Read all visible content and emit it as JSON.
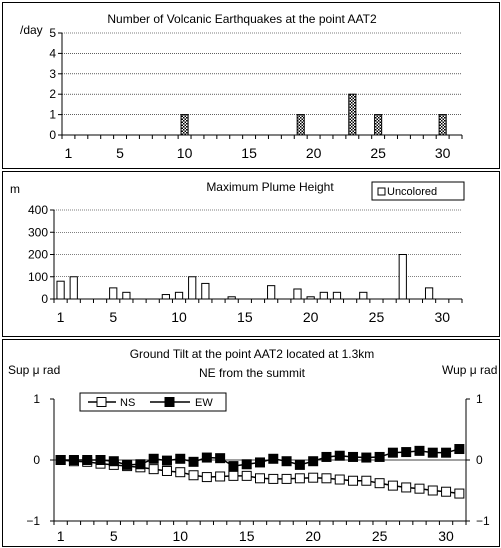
{
  "chart_data": [
    {
      "type": "bar",
      "title": "Number of Volcanic Earthquakes at the point AAT2",
      "ylabel": "/day",
      "xlabel": "",
      "x": [
        1,
        2,
        3,
        4,
        5,
        6,
        7,
        8,
        9,
        10,
        11,
        12,
        13,
        14,
        15,
        16,
        17,
        18,
        19,
        20,
        21,
        22,
        23,
        24,
        25,
        26,
        27,
        28,
        29,
        30,
        31
      ],
      "values": [
        0,
        0,
        0,
        0,
        0,
        0,
        0,
        0,
        0,
        1,
        0,
        0,
        0,
        0,
        0,
        0,
        0,
        0,
        1,
        0,
        0,
        0,
        2,
        0,
        1,
        0,
        0,
        0,
        0,
        1,
        0
      ],
      "xlim": [
        1,
        31
      ],
      "ylim": [
        0,
        5
      ],
      "yticks": [
        0,
        1,
        2,
        3,
        4,
        5
      ],
      "xticks": [
        1,
        5,
        10,
        15,
        20,
        25,
        30
      ],
      "grid": "horizontal",
      "bar_fill": "crosshatch"
    },
    {
      "type": "bar",
      "title": "Maximum Plume Height",
      "ylabel": "m",
      "xlabel": "",
      "x": [
        1,
        2,
        3,
        4,
        5,
        6,
        7,
        8,
        9,
        10,
        11,
        12,
        13,
        14,
        15,
        16,
        17,
        18,
        19,
        20,
        21,
        22,
        23,
        24,
        25,
        26,
        27,
        28,
        29,
        30,
        31
      ],
      "values": [
        80,
        100,
        0,
        0,
        50,
        30,
        0,
        0,
        20,
        30,
        100,
        70,
        0,
        10,
        0,
        0,
        60,
        0,
        45,
        10,
        30,
        30,
        0,
        30,
        0,
        0,
        200,
        0,
        50,
        0,
        0
      ],
      "xlim": [
        1,
        31
      ],
      "ylim": [
        0,
        400
      ],
      "yticks": [
        0,
        100,
        200,
        300,
        400
      ],
      "xticks": [
        1,
        5,
        10,
        15,
        20,
        25,
        30
      ],
      "grid": "horizontal",
      "legend": {
        "label": "Uncolored",
        "position": "top-right"
      }
    },
    {
      "type": "line",
      "title": "Ground Tilt at the point AAT2 located at 1.3km",
      "subtitle": "NE from the summit",
      "ylabel_left": "Sup μ rad",
      "ylabel_right": "Wup μ rad",
      "x": [
        1,
        2,
        3,
        4,
        5,
        6,
        7,
        8,
        9,
        10,
        11,
        12,
        13,
        14,
        15,
        16,
        17,
        18,
        19,
        20,
        21,
        22,
        23,
        24,
        25,
        26,
        27,
        28,
        29,
        30,
        31
      ],
      "series": [
        {
          "name": "NS",
          "marker": "open-square",
          "values": [
            0,
            -0.02,
            -0.03,
            -0.06,
            -0.08,
            -0.1,
            -0.12,
            -0.15,
            -0.18,
            -0.2,
            -0.25,
            -0.28,
            -0.27,
            -0.26,
            -0.26,
            -0.3,
            -0.31,
            -0.31,
            -0.3,
            -0.29,
            -0.3,
            -0.32,
            -0.34,
            -0.34,
            -0.38,
            -0.42,
            -0.45,
            -0.47,
            -0.5,
            -0.52,
            -0.55
          ]
        },
        {
          "name": "EW",
          "marker": "filled-square",
          "values": [
            0,
            0,
            0,
            0,
            -0.02,
            -0.08,
            -0.07,
            0.02,
            -0.01,
            0.02,
            -0.03,
            0.04,
            0.03,
            -0.1,
            -0.07,
            -0.04,
            0.02,
            -0.02,
            -0.08,
            -0.02,
            0.05,
            0.07,
            0.05,
            0.04,
            0.05,
            0.12,
            0.13,
            0.15,
            0.12,
            0.12,
            0.18
          ]
        }
      ],
      "xlim": [
        1,
        31
      ],
      "ylim": [
        -1,
        1
      ],
      "yticks": [
        -1,
        0,
        1
      ],
      "xticks": [
        1,
        5,
        10,
        15,
        20,
        25,
        30
      ],
      "legend": {
        "position": "top-left"
      }
    }
  ]
}
